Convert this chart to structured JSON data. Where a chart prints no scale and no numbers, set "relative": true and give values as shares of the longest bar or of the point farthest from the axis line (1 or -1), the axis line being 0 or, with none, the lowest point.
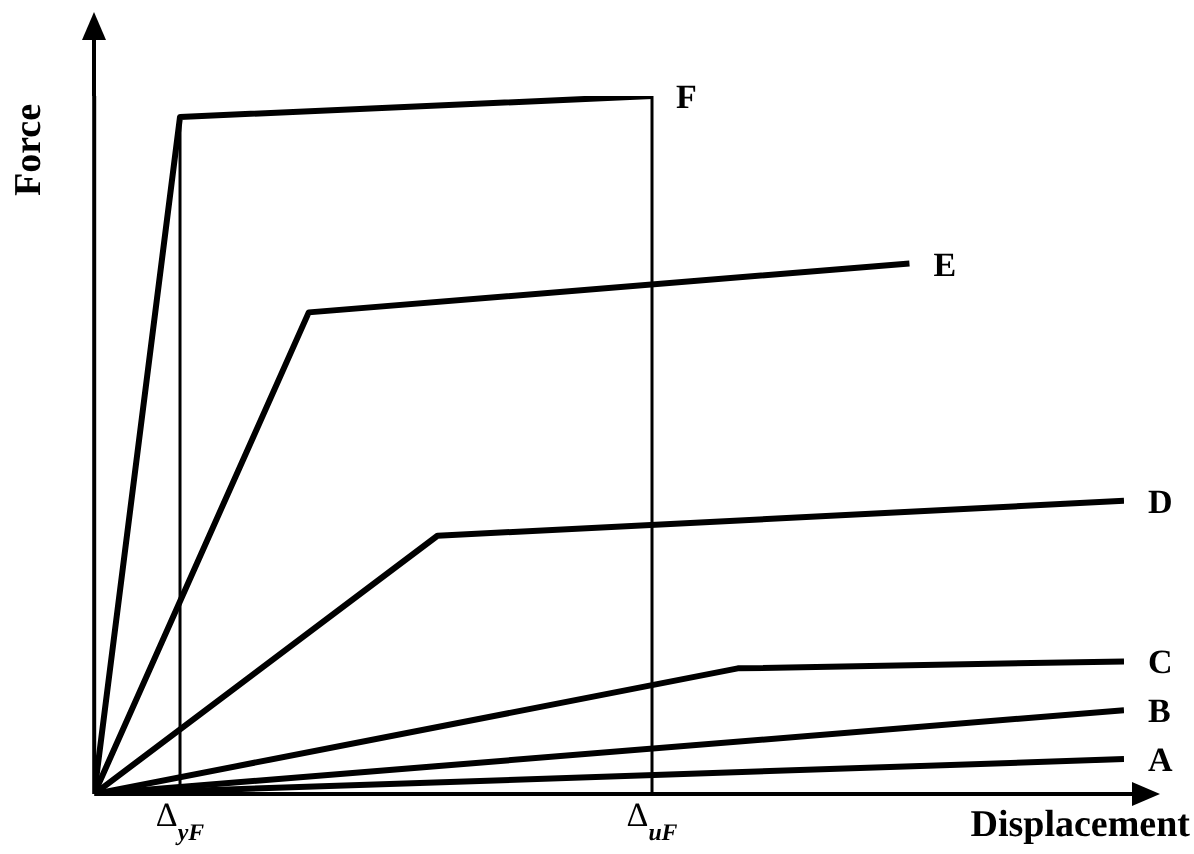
{
  "chart_data": {
    "type": "line",
    "relative": true,
    "xlabel": "Displacement",
    "ylabel": "Force",
    "categories": [
      null,
      null,
      "Δ$_{yF}$",
      null,
      null,
      null,
      null,
      null,
      null,
      null,
      null,
      null,
      null,
      "Δ$_{uF}$",
      null,
      null,
      null,
      null,
      null,
      null,
      null,
      null,
      null,
      null,
      null
    ],
    "series": [
      {
        "name": "F",
        "color": "#000000",
        "values": [
          0,
          null,
          0.97,
          null,
          null,
          null,
          null,
          null,
          null,
          null,
          null,
          null,
          null,
          1,
          null,
          null,
          null,
          null,
          null,
          null,
          null,
          null,
          null,
          null,
          null
        ]
      },
      {
        "name": "E",
        "color": "#000000",
        "values": [
          0,
          null,
          null,
          null,
          null,
          0.69,
          null,
          null,
          null,
          null,
          null,
          null,
          null,
          null,
          null,
          null,
          null,
          null,
          null,
          0.76,
          null,
          null,
          null,
          null,
          null
        ]
      },
      {
        "name": "D",
        "color": "#000000",
        "values": [
          0,
          null,
          null,
          null,
          null,
          null,
          null,
          null,
          0.37,
          null,
          null,
          null,
          null,
          null,
          null,
          null,
          null,
          null,
          null,
          null,
          null,
          null,
          null,
          null,
          0.42
        ]
      },
      {
        "name": "C",
        "color": "#000000",
        "values": [
          0,
          null,
          null,
          null,
          null,
          null,
          null,
          null,
          null,
          null,
          null,
          null,
          null,
          null,
          null,
          0.18,
          null,
          null,
          null,
          null,
          null,
          null,
          null,
          null,
          0.19
        ]
      },
      {
        "name": "B",
        "color": "#000000",
        "values": [
          0,
          null,
          null,
          null,
          null,
          null,
          null,
          null,
          null,
          null,
          null,
          null,
          null,
          null,
          null,
          null,
          null,
          null,
          null,
          null,
          null,
          null,
          null,
          null,
          0.12
        ]
      },
      {
        "name": "A",
        "color": "#000000",
        "values": [
          0,
          null,
          null,
          null,
          null,
          null,
          null,
          null,
          null,
          null,
          null,
          null,
          null,
          null,
          null,
          null,
          null,
          null,
          null,
          null,
          null,
          null,
          null,
          null,
          0.05
        ]
      }
    ],
    "ref_lines": [
      {
        "axis": "x",
        "value": "Δ$_{yF}$",
        "color": "#000000"
      },
      {
        "axis": "x",
        "value": "Δ$_{uF}$",
        "color": "#000000"
      }
    ],
    "grid": false,
    "legend": false,
    "marker": "none",
    "line_style": "solid"
  }
}
